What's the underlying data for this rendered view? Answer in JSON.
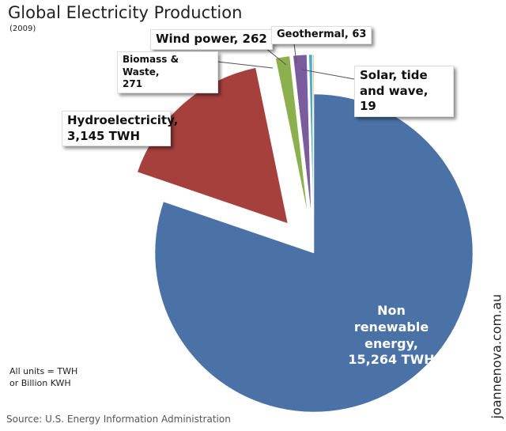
{
  "chart_data": {
    "type": "pie",
    "title": "Global Electricity Production",
    "subtitle": "(2009)",
    "categories": [
      "Non renewable energy,",
      "Hydroelectricity,",
      "Biomass & Waste,",
      "Wind power,",
      "Geothermal,",
      "Solar, tide and wave,"
    ],
    "values": [
      15264,
      3145,
      271,
      262,
      63,
      19
    ],
    "value_labels": [
      "15,264 TWH",
      "3,145 TWH",
      "271",
      "262",
      "63",
      "19"
    ],
    "colors": [
      "#4a72a6",
      "#a5403d",
      "#8db04f",
      "#7b5c9f",
      "#4bacc6",
      "#f79646"
    ],
    "note": "All units = TWH or Billion KWH",
    "source": "Source: U.S. Energy Information Administration",
    "watermark": "joannenova.com.au"
  }
}
